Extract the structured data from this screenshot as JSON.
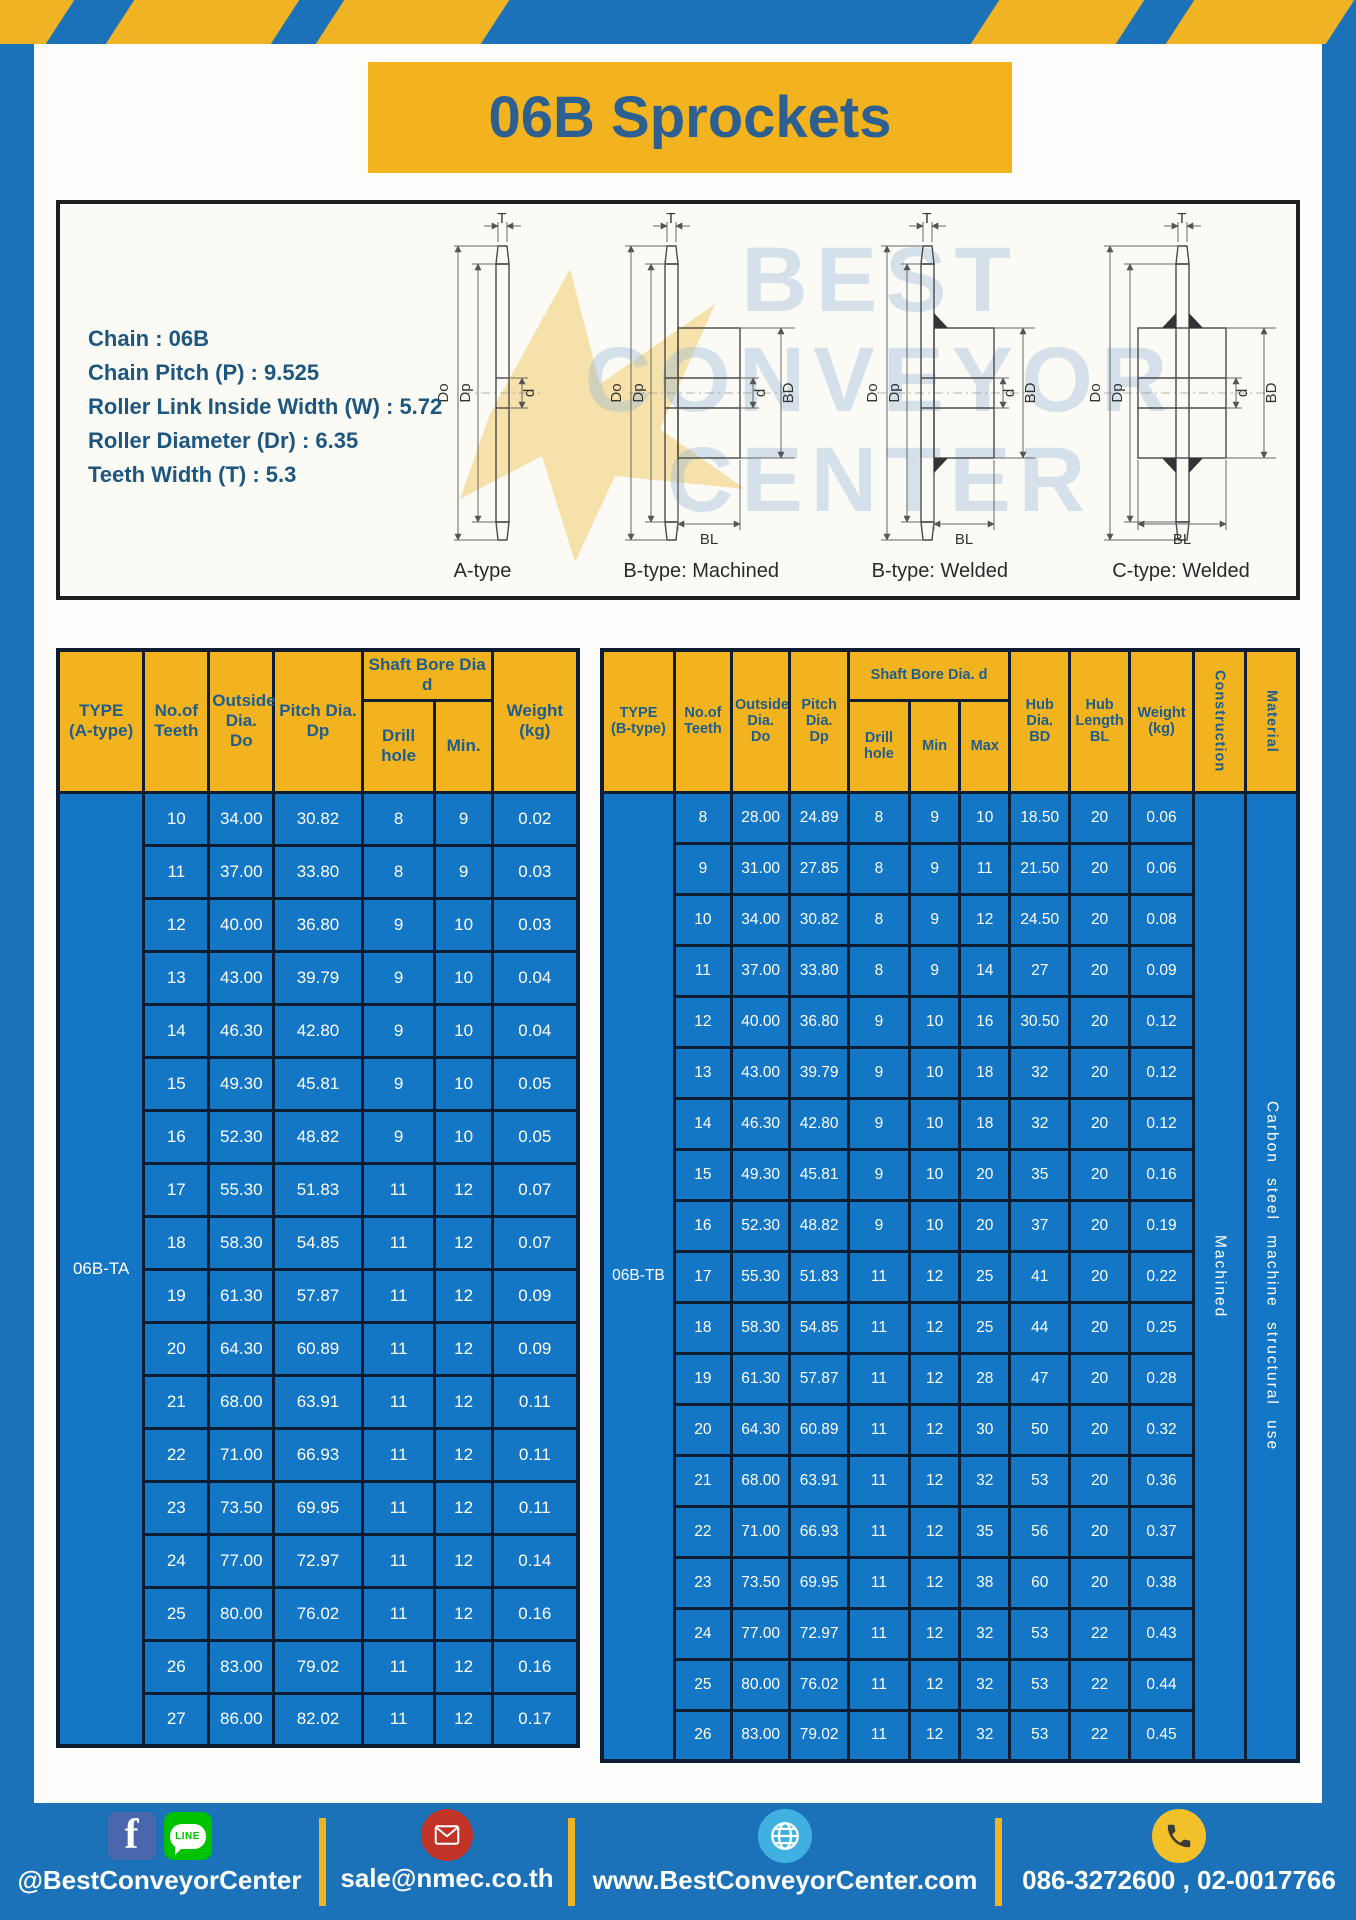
{
  "banner": {
    "title": "06B Sprockets"
  },
  "spec_box": {
    "lines": [
      "Chain : 06B",
      "Chain Pitch (P) : 9.525",
      "Roller Link Inside Width (W) : 5.72",
      "Roller Diameter (Dr) : 6.35",
      "Teeth Width (T) : 5.3"
    ],
    "diagram_labels": [
      "A-type",
      "B-type: Machined",
      "B-type: Welded",
      "C-type: Welded"
    ],
    "dim": {
      "t": "T",
      "do": "Do",
      "dp": "Dp",
      "d": "d",
      "bd": "BD",
      "bl": "BL"
    },
    "watermark": "BEST\nCONVEYOR\nCENTER"
  },
  "table_a": {
    "col_type": "TYPE\n(A-type)",
    "col_teeth": "No.of\nTeeth",
    "col_outside": "Outside\nDia.\nDo",
    "col_pitch": "Pitch Dia.\nDp",
    "col_shaft_group": "Shaft Bore Dia d",
    "col_drill": "Drill hole",
    "col_min": "Min.",
    "col_weight": "Weight\n(kg)",
    "type_label": "06B-TA",
    "rows": [
      [
        "10",
        "34.00",
        "30.82",
        "8",
        "9",
        "0.02"
      ],
      [
        "11",
        "37.00",
        "33.80",
        "8",
        "9",
        "0.03"
      ],
      [
        "12",
        "40.00",
        "36.80",
        "9",
        "10",
        "0.03"
      ],
      [
        "13",
        "43.00",
        "39.79",
        "9",
        "10",
        "0.04"
      ],
      [
        "14",
        "46.30",
        "42.80",
        "9",
        "10",
        "0.04"
      ],
      [
        "15",
        "49.30",
        "45.81",
        "9",
        "10",
        "0.05"
      ],
      [
        "16",
        "52.30",
        "48.82",
        "9",
        "10",
        "0.05"
      ],
      [
        "17",
        "55.30",
        "51.83",
        "11",
        "12",
        "0.07"
      ],
      [
        "18",
        "58.30",
        "54.85",
        "11",
        "12",
        "0.07"
      ],
      [
        "19",
        "61.30",
        "57.87",
        "11",
        "12",
        "0.09"
      ],
      [
        "20",
        "64.30",
        "60.89",
        "11",
        "12",
        "0.09"
      ],
      [
        "21",
        "68.00",
        "63.91",
        "11",
        "12",
        "0.11"
      ],
      [
        "22",
        "71.00",
        "66.93",
        "11",
        "12",
        "0.11"
      ],
      [
        "23",
        "73.50",
        "69.95",
        "11",
        "12",
        "0.11"
      ],
      [
        "24",
        "77.00",
        "72.97",
        "11",
        "12",
        "0.14"
      ],
      [
        "25",
        "80.00",
        "76.02",
        "11",
        "12",
        "0.16"
      ],
      [
        "26",
        "83.00",
        "79.02",
        "11",
        "12",
        "0.16"
      ],
      [
        "27",
        "86.00",
        "82.02",
        "11",
        "12",
        "0.17"
      ]
    ]
  },
  "table_b": {
    "col_type": "TYPE\n(B-type)",
    "col_teeth": "No.of\nTeeth",
    "col_outside": "Outside\nDia.\nDo",
    "col_pitch": "Pitch\nDia.\nDp",
    "col_shaft_group": "Shaft Bore Dia. d",
    "col_drill": "Drill hole",
    "col_min": "Min",
    "col_max": "Max",
    "col_hub_dia": "Hub\nDia.\nBD",
    "col_hub_len": "Hub\nLength\nBL",
    "col_weight": "Weight\n(kg)",
    "col_construction": "Construction",
    "col_material": "Material",
    "type_label": "06B-TB",
    "construction_value": "Machined",
    "material_value": "Carbon steel machine structural use",
    "rows": [
      [
        "8",
        "28.00",
        "24.89",
        "8",
        "9",
        "10",
        "18.50",
        "20",
        "0.06"
      ],
      [
        "9",
        "31.00",
        "27.85",
        "8",
        "9",
        "11",
        "21.50",
        "20",
        "0.06"
      ],
      [
        "10",
        "34.00",
        "30.82",
        "8",
        "9",
        "12",
        "24.50",
        "20",
        "0.08"
      ],
      [
        "11",
        "37.00",
        "33.80",
        "8",
        "9",
        "14",
        "27",
        "20",
        "0.09"
      ],
      [
        "12",
        "40.00",
        "36.80",
        "9",
        "10",
        "16",
        "30.50",
        "20",
        "0.12"
      ],
      [
        "13",
        "43.00",
        "39.79",
        "9",
        "10",
        "18",
        "32",
        "20",
        "0.12"
      ],
      [
        "14",
        "46.30",
        "42.80",
        "9",
        "10",
        "18",
        "32",
        "20",
        "0.12"
      ],
      [
        "15",
        "49.30",
        "45.81",
        "9",
        "10",
        "20",
        "35",
        "20",
        "0.16"
      ],
      [
        "16",
        "52.30",
        "48.82",
        "9",
        "10",
        "20",
        "37",
        "20",
        "0.19"
      ],
      [
        "17",
        "55.30",
        "51.83",
        "11",
        "12",
        "25",
        "41",
        "20",
        "0.22"
      ],
      [
        "18",
        "58.30",
        "54.85",
        "11",
        "12",
        "25",
        "44",
        "20",
        "0.25"
      ],
      [
        "19",
        "61.30",
        "57.87",
        "11",
        "12",
        "28",
        "47",
        "20",
        "0.28"
      ],
      [
        "20",
        "64.30",
        "60.89",
        "11",
        "12",
        "30",
        "50",
        "20",
        "0.32"
      ],
      [
        "21",
        "68.00",
        "63.91",
        "11",
        "12",
        "32",
        "53",
        "20",
        "0.36"
      ],
      [
        "22",
        "71.00",
        "66.93",
        "11",
        "12",
        "35",
        "56",
        "20",
        "0.37"
      ],
      [
        "23",
        "73.50",
        "69.95",
        "11",
        "12",
        "38",
        "60",
        "20",
        "0.38"
      ],
      [
        "24",
        "77.00",
        "72.97",
        "11",
        "12",
        "32",
        "53",
        "22",
        "0.43"
      ],
      [
        "25",
        "80.00",
        "76.02",
        "11",
        "12",
        "32",
        "53",
        "22",
        "0.44"
      ],
      [
        "26",
        "83.00",
        "79.02",
        "11",
        "12",
        "32",
        "53",
        "22",
        "0.45"
      ]
    ]
  },
  "footer": {
    "facebook_label": "f",
    "line_label": "LINE",
    "social_label": "@BestConveyorCenter",
    "email": "sale@nmec.co.th",
    "website": "www.BestConveyorCenter.com",
    "phone": "086-3272600 , 02-0017766"
  },
  "colors": {
    "frame_blue": "#1c72b8",
    "stripe_yellow": "#f0b323",
    "header_yellow": "#f2b31e",
    "row_blue": "#1377c6",
    "header_text": "#1f5d8c",
    "border_dark": "#0f1d33",
    "title_text": "#2d6090",
    "spec_text": "#1d567f",
    "facebook_blue": "#4a66ad",
    "line_green": "#00c300",
    "mail_red": "#c13327",
    "globe_blue": "#3fb0e0",
    "phone_yellow": "#f2c028"
  }
}
